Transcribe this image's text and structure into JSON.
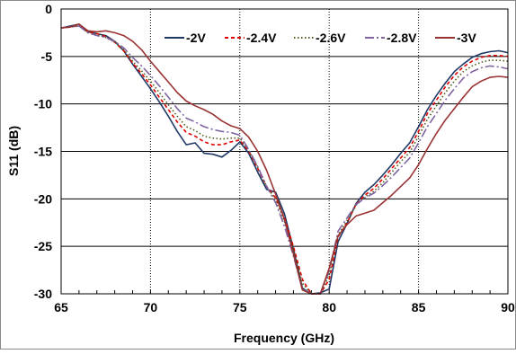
{
  "chart_data": {
    "type": "line",
    "title": "",
    "xlabel": "Frequency (GHz)",
    "ylabel": "S11 (dB)",
    "xlim": [
      65,
      90
    ],
    "ylim": [
      -30,
      0
    ],
    "xticks": [
      65,
      70,
      75,
      80,
      85,
      90
    ],
    "yticks": [
      0,
      -5,
      -10,
      -15,
      -20,
      -25,
      -30
    ],
    "grid": "solid horizontal, dotted vertical",
    "legend_position": "top-center",
    "series": [
      {
        "name": "-2V",
        "color": "#1f3864",
        "dash": "solid",
        "x": [
          65,
          65.5,
          66,
          66.5,
          67,
          67.5,
          68,
          68.5,
          69,
          69.5,
          70,
          70.5,
          71,
          71.5,
          72,
          72.5,
          73,
          73.5,
          74,
          74.5,
          75,
          75.5,
          76,
          76.5,
          77,
          77.5,
          78,
          78.5,
          79,
          79.5,
          80,
          80.5,
          81,
          81.5,
          82,
          82.5,
          83,
          83.5,
          84,
          84.5,
          85,
          85.5,
          86,
          86.5,
          87,
          87.5,
          88,
          88.5,
          89,
          89.5,
          90
        ],
        "y": [
          -2.0,
          -1.8,
          -1.6,
          -2.4,
          -2.6,
          -2.8,
          -3.4,
          -4.4,
          -5.8,
          -7.1,
          -8.4,
          -9.8,
          -11.3,
          -12.9,
          -14.3,
          -14.1,
          -15.2,
          -15.3,
          -15.6,
          -14.9,
          -14.0,
          -15.2,
          -17.2,
          -19.0,
          -19.3,
          -21.6,
          -25.3,
          -29.4,
          -30.0,
          -29.9,
          -29.5,
          -24.5,
          -22.6,
          -20.5,
          -19.3,
          -18.5,
          -17.5,
          -16.4,
          -15.2,
          -14.1,
          -12.4,
          -10.6,
          -9.1,
          -7.8,
          -6.6,
          -5.8,
          -5.1,
          -4.7,
          -4.5,
          -4.4,
          -4.6
        ]
      },
      {
        "name": "-2.4V",
        "color": "#e00000",
        "dash": "4,3",
        "x": [
          65,
          65.5,
          66,
          66.5,
          67,
          67.5,
          68,
          68.5,
          69,
          69.5,
          70,
          70.5,
          71,
          71.5,
          72,
          72.5,
          73,
          73.5,
          74,
          74.5,
          75,
          75.5,
          76,
          76.5,
          77,
          77.5,
          78,
          78.5,
          79,
          79.5,
          80,
          80.5,
          81,
          81.5,
          82,
          82.5,
          83,
          83.5,
          84,
          84.5,
          85,
          85.5,
          86,
          86.5,
          87,
          87.5,
          88,
          88.5,
          89,
          89.5,
          90
        ],
        "y": [
          -2.0,
          -1.9,
          -1.7,
          -2.4,
          -2.6,
          -2.9,
          -3.5,
          -4.4,
          -5.7,
          -6.8,
          -8.0,
          -9.3,
          -10.6,
          -11.9,
          -13.0,
          -13.4,
          -14.0,
          -14.3,
          -14.3,
          -14.0,
          -13.8,
          -15.0,
          -16.8,
          -18.7,
          -19.9,
          -22.0,
          -25.0,
          -28.5,
          -30.0,
          -30.0,
          -28.5,
          -24.0,
          -22.5,
          -20.6,
          -19.6,
          -18.9,
          -17.9,
          -16.8,
          -15.7,
          -14.6,
          -12.9,
          -11.0,
          -9.6,
          -8.2,
          -7.0,
          -6.1,
          -5.5,
          -5.1,
          -4.9,
          -4.9,
          -5.0
        ]
      },
      {
        "name": "-2.6V",
        "color": "#4f5b1a",
        "dash": "1.5,2.5",
        "x": [
          65,
          65.5,
          66,
          66.5,
          67,
          67.5,
          68,
          68.5,
          69,
          69.5,
          70,
          70.5,
          71,
          71.5,
          72,
          72.5,
          73,
          73.5,
          74,
          74.5,
          75,
          75.5,
          76,
          76.5,
          77,
          77.5,
          78,
          78.5,
          79,
          79.5,
          80,
          80.5,
          81,
          81.5,
          82,
          82.5,
          83,
          83.5,
          84,
          84.5,
          85,
          85.5,
          86,
          86.5,
          87,
          87.5,
          88,
          88.5,
          89,
          89.5,
          90
        ],
        "y": [
          -2.0,
          -1.9,
          -1.8,
          -2.5,
          -2.7,
          -3.0,
          -3.5,
          -4.3,
          -5.5,
          -6.5,
          -7.6,
          -8.8,
          -10.1,
          -11.3,
          -12.4,
          -12.8,
          -13.4,
          -13.6,
          -13.7,
          -13.6,
          -13.6,
          -14.9,
          -16.7,
          -18.7,
          -20.1,
          -22.4,
          -25.3,
          -28.9,
          -30.0,
          -30.0,
          -28.0,
          -23.8,
          -22.3,
          -20.7,
          -19.8,
          -19.2,
          -18.3,
          -17.2,
          -16.1,
          -15.1,
          -13.4,
          -11.6,
          -10.2,
          -8.8,
          -7.6,
          -6.6,
          -6.0,
          -5.6,
          -5.4,
          -5.4,
          -5.5
        ]
      },
      {
        "name": "-2.8V",
        "color": "#8064a2",
        "dash": "10,3,2,3",
        "x": [
          65,
          65.5,
          66,
          66.5,
          67,
          67.5,
          68,
          68.5,
          69,
          69.5,
          70,
          70.5,
          71,
          71.5,
          72,
          72.5,
          73,
          73.5,
          74,
          74.5,
          75,
          75.5,
          76,
          76.5,
          77,
          77.5,
          78,
          78.5,
          79,
          79.5,
          80,
          80.5,
          81,
          81.5,
          82,
          82.5,
          83,
          83.5,
          84,
          84.5,
          85,
          85.5,
          86,
          86.5,
          87,
          87.5,
          88,
          88.5,
          89,
          89.5,
          90
        ],
        "y": [
          -2.0,
          -1.9,
          -1.8,
          -2.5,
          -2.8,
          -3.0,
          -3.4,
          -4.1,
          -5.1,
          -6.0,
          -7.0,
          -8.1,
          -9.3,
          -10.5,
          -11.5,
          -11.9,
          -12.4,
          -12.7,
          -12.9,
          -13.0,
          -13.3,
          -14.8,
          -16.6,
          -18.7,
          -20.4,
          -22.9,
          -26.0,
          -29.5,
          -30.0,
          -30.0,
          -27.6,
          -23.4,
          -22.0,
          -20.6,
          -19.9,
          -19.4,
          -18.6,
          -17.7,
          -16.7,
          -15.7,
          -14.1,
          -12.4,
          -11.0,
          -9.6,
          -8.4,
          -7.3,
          -6.6,
          -6.2,
          -6.0,
          -6.1,
          -6.3
        ]
      },
      {
        "name": "-3V",
        "color": "#993333",
        "dash": "solid",
        "x": [
          65,
          65.5,
          66,
          66.5,
          67,
          67.5,
          68,
          68.5,
          69,
          69.5,
          70,
          70.5,
          71,
          71.5,
          72,
          72.5,
          73,
          73.5,
          74,
          74.5,
          75,
          75.5,
          76,
          76.5,
          77,
          77.5,
          78,
          78.5,
          79,
          79.5,
          80,
          80.5,
          81,
          81.5,
          82,
          82.5,
          83,
          83.5,
          84,
          84.5,
          85,
          85.5,
          86,
          86.5,
          87,
          87.5,
          88,
          88.5,
          89,
          89.5,
          90
        ],
        "y": [
          -2.0,
          -1.9,
          -1.6,
          -2.3,
          -2.4,
          -2.3,
          -2.5,
          -2.8,
          -3.4,
          -4.3,
          -5.5,
          -6.6,
          -7.7,
          -8.8,
          -9.7,
          -10.2,
          -10.6,
          -11.1,
          -11.8,
          -12.3,
          -12.6,
          -13.5,
          -15.0,
          -17.0,
          -19.5,
          -22.2,
          -25.8,
          -29.6,
          -30.0,
          -30.0,
          -27.3,
          -23.9,
          -22.7,
          -21.8,
          -21.5,
          -21.2,
          -20.4,
          -19.6,
          -18.7,
          -17.8,
          -16.4,
          -14.7,
          -13.1,
          -11.7,
          -10.5,
          -9.3,
          -8.2,
          -7.6,
          -7.2,
          -7.1,
          -7.2
        ]
      }
    ]
  }
}
